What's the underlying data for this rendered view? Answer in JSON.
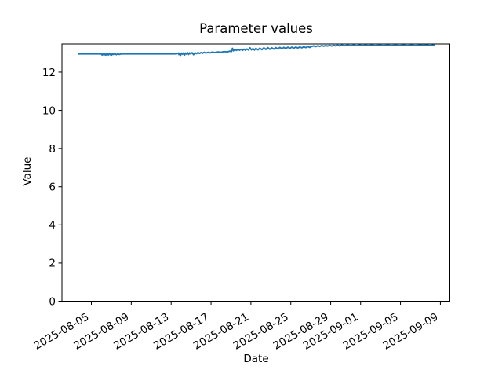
{
  "figure": {
    "background": "#ffffff"
  },
  "chart_data": {
    "type": "line",
    "title": "Parameter values",
    "xlabel": "Date",
    "ylabel": "Value",
    "grid": false,
    "line_color": "#1f77b4",
    "axis_color": "#000000",
    "x_axis": {
      "epoch_date": "2025-08-01",
      "tick_labels": [
        "2025-08-05",
        "2025-08-09",
        "2025-08-13",
        "2025-08-17",
        "2025-08-21",
        "2025-08-25",
        "2025-08-29",
        "2025-09-01",
        "2025-09-05",
        "2025-09-09"
      ],
      "tick_days": [
        4,
        8,
        12,
        16,
        20,
        24,
        28,
        31,
        35,
        39
      ],
      "tick_label_rotation_deg": 30,
      "lim_days": [
        1.05,
        39.95
      ]
    },
    "y_axis": {
      "tick_labels": [
        "0",
        "2",
        "4",
        "6",
        "8",
        "10",
        "12"
      ],
      "ticks": [
        0,
        2,
        4,
        6,
        8,
        10,
        12
      ],
      "lim": [
        0,
        13.48
      ]
    },
    "series": [
      {
        "name": "parameter-values",
        "x_days": [
          2.66,
          3.0,
          3.5,
          4.0,
          4.5,
          5.0,
          5.08,
          5.16,
          5.24,
          5.32,
          5.4,
          5.48,
          5.56,
          5.64,
          5.72,
          5.8,
          5.88,
          5.96,
          6.04,
          6.12,
          6.2,
          6.35,
          6.5,
          6.65,
          6.8,
          7.0,
          7.5,
          8.5,
          9.5,
          10.5,
          11.5,
          12.3,
          12.6,
          12.7,
          12.78,
          12.86,
          12.95,
          13.05,
          13.15,
          13.25,
          13.35,
          13.45,
          13.55,
          13.65,
          13.75,
          13.85,
          13.95,
          14.1,
          14.25,
          14.4,
          14.55,
          14.7,
          14.85,
          15.0,
          15.15,
          15.3,
          15.5,
          15.7,
          15.9,
          16.1,
          16.4,
          16.7,
          17.0,
          17.3,
          17.6,
          17.9,
          18.05,
          18.15,
          18.25,
          18.4,
          18.55,
          18.7,
          18.85,
          19.0,
          19.15,
          19.3,
          19.45,
          19.6,
          19.75,
          19.9,
          20.05,
          20.2,
          20.35,
          20.5,
          20.7,
          20.9,
          21.1,
          21.3,
          21.5,
          21.7,
          21.9,
          22.1,
          22.3,
          22.5,
          22.7,
          22.9,
          23.1,
          23.3,
          23.5,
          23.7,
          23.9,
          24.1,
          24.3,
          24.5,
          24.7,
          24.9,
          25.1,
          25.3,
          25.5,
          25.7,
          25.9,
          26.1,
          26.3,
          26.5,
          26.7,
          26.9,
          27.1,
          27.3,
          27.5,
          27.7,
          27.9,
          28.1,
          28.3,
          28.5,
          28.7,
          28.9,
          29.1,
          29.4,
          29.7,
          30.0,
          30.3,
          30.6,
          30.9,
          31.2,
          31.5,
          31.8,
          32.1,
          32.5,
          32.9,
          33.3,
          33.7,
          34.1,
          34.5,
          34.9,
          35.3,
          35.7,
          36.1,
          36.5,
          36.9,
          37.3,
          37.7,
          38.0,
          38.2,
          38.45
        ],
        "y": [
          12.96,
          12.96,
          12.96,
          12.96,
          12.96,
          12.96,
          12.9,
          12.96,
          12.91,
          12.97,
          12.9,
          12.95,
          12.89,
          12.96,
          12.91,
          12.97,
          12.92,
          12.96,
          12.9,
          12.96,
          12.93,
          12.97,
          12.92,
          12.96,
          12.93,
          12.96,
          12.96,
          12.96,
          12.96,
          12.96,
          12.96,
          12.96,
          12.97,
          13.0,
          12.92,
          13.0,
          12.89,
          13.0,
          12.94,
          13.01,
          12.9,
          13.0,
          12.95,
          13.02,
          12.93,
          13.01,
          12.96,
          13.02,
          12.92,
          13.02,
          12.97,
          13.03,
          12.98,
          13.03,
          12.99,
          13.04,
          13.0,
          13.04,
          13.01,
          13.05,
          13.03,
          13.06,
          13.04,
          13.08,
          13.06,
          13.1,
          13.08,
          13.25,
          13.12,
          13.2,
          13.14,
          13.21,
          13.15,
          13.2,
          13.14,
          13.21,
          13.15,
          13.22,
          13.16,
          13.28,
          13.17,
          13.24,
          13.16,
          13.25,
          13.17,
          13.26,
          13.18,
          13.28,
          13.19,
          13.29,
          13.2,
          13.28,
          13.21,
          13.29,
          13.22,
          13.3,
          13.23,
          13.3,
          13.24,
          13.31,
          13.25,
          13.31,
          13.26,
          13.32,
          13.27,
          13.32,
          13.28,
          13.33,
          13.29,
          13.34,
          13.3,
          13.35,
          13.38,
          13.34,
          13.39,
          13.35,
          13.4,
          13.36,
          13.4,
          13.37,
          13.41,
          13.37,
          13.41,
          13.38,
          13.42,
          13.38,
          13.42,
          13.39,
          13.42,
          13.39,
          13.42,
          13.39,
          13.42,
          13.4,
          13.42,
          13.4,
          13.42,
          13.4,
          13.42,
          13.4,
          13.42,
          13.4,
          13.42,
          13.4,
          13.42,
          13.4,
          13.42,
          13.4,
          13.42,
          13.41,
          13.42,
          13.4,
          13.42,
          13.41
        ]
      }
    ]
  }
}
